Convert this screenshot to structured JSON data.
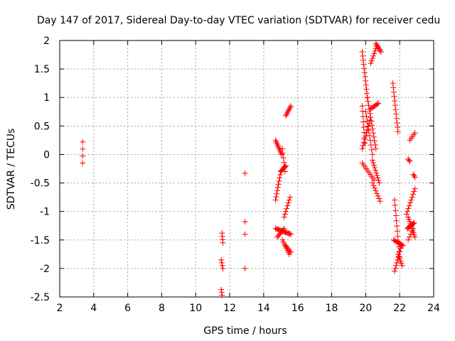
{
  "chart_data": {
    "type": "scatter",
    "title": "Day 147 of 2017, Sidereal Day-to-day VTEC variation (SDTVAR) for receiver cedu",
    "xlabel": "GPS time / hours",
    "ylabel": "SDTVAR / TECUs",
    "xlim": [
      2,
      24
    ],
    "ylim": [
      -2.5,
      2
    ],
    "x_ticks": [
      2,
      4,
      6,
      8,
      10,
      12,
      14,
      16,
      18,
      20,
      22,
      24
    ],
    "y_ticks": [
      -2.5,
      -2,
      -1.5,
      -1,
      -0.5,
      0,
      0.5,
      1,
      1.5,
      2
    ],
    "x_tick_labels": [
      "2",
      "4",
      "6",
      "8",
      "10",
      "12",
      "14",
      "16",
      "18",
      "20",
      "22",
      "24"
    ],
    "y_tick_labels": [
      "-2.5",
      "-2",
      "-1.5",
      "-1",
      "-0.5",
      "0",
      "0.5",
      "1",
      "1.5",
      "2"
    ],
    "grid": true,
    "marker": "+",
    "marker_color": "#ff0000",
    "series": [
      {
        "name": "SDTVAR",
        "tracks": [
          {
            "x0": 3.35,
            "y0": 0.22,
            "x1": 3.35,
            "y1": -0.15,
            "n": 4
          },
          {
            "x0": 11.55,
            "y0": -1.38,
            "x1": 11.6,
            "y1": -1.55,
            "n": 4
          },
          {
            "x0": 11.5,
            "y0": -1.85,
            "x1": 11.6,
            "y1": -2.0,
            "n": 4
          },
          {
            "x0": 11.5,
            "y0": -2.37,
            "x1": 11.55,
            "y1": -2.47,
            "n": 3
          },
          {
            "x0": 12.9,
            "y0": -0.33,
            "x1": 12.9,
            "y1": -0.33,
            "n": 1
          },
          {
            "x0": 12.9,
            "y0": -1.18,
            "x1": 12.9,
            "y1": -1.4,
            "n": 2
          },
          {
            "x0": 12.9,
            "y0": -2.0,
            "x1": 12.9,
            "y1": -2.0,
            "n": 1
          },
          {
            "x0": 14.7,
            "y0": 0.25,
            "x1": 15.05,
            "y1": 0.0,
            "n": 10
          },
          {
            "x0": 14.7,
            "y0": -0.8,
            "x1": 15.0,
            "y1": -0.3,
            "n": 10
          },
          {
            "x0": 15.0,
            "y0": -0.3,
            "x1": 15.3,
            "y1": -0.2,
            "n": 8
          },
          {
            "x0": 15.1,
            "y0": 0.1,
            "x1": 15.25,
            "y1": -0.3,
            "n": 6
          },
          {
            "x0": 14.7,
            "y0": -1.3,
            "x1": 15.6,
            "y1": -1.4,
            "n": 18
          },
          {
            "x0": 14.8,
            "y0": -1.45,
            "x1": 15.2,
            "y1": -1.3,
            "n": 8
          },
          {
            "x0": 15.1,
            "y0": -1.5,
            "x1": 15.5,
            "y1": -1.75,
            "n": 8
          },
          {
            "x0": 15.3,
            "y0": -1.6,
            "x1": 15.6,
            "y1": -1.72,
            "n": 6
          },
          {
            "x0": 15.2,
            "y0": -1.1,
            "x1": 15.55,
            "y1": -0.75,
            "n": 8
          },
          {
            "x0": 15.3,
            "y0": 0.68,
            "x1": 15.6,
            "y1": 0.85,
            "n": 8
          },
          {
            "x0": 19.8,
            "y0": 1.8,
            "x1": 20.1,
            "y1": 1.0,
            "n": 12
          },
          {
            "x0": 20.1,
            "y0": 1.0,
            "x1": 20.6,
            "y1": 0.1,
            "n": 14
          },
          {
            "x0": 20.3,
            "y0": 0.8,
            "x1": 20.75,
            "y1": 0.9,
            "n": 8
          },
          {
            "x0": 20.0,
            "y0": 0.75,
            "x1": 20.4,
            "y1": 0.0,
            "n": 10
          },
          {
            "x0": 19.8,
            "y0": 0.85,
            "x1": 19.95,
            "y1": 0.2,
            "n": 8
          },
          {
            "x0": 19.8,
            "y0": 0.1,
            "x1": 20.25,
            "y1": 0.6,
            "n": 10
          },
          {
            "x0": 20.4,
            "y0": -0.1,
            "x1": 20.8,
            "y1": -0.5,
            "n": 10
          },
          {
            "x0": 19.8,
            "y0": -0.15,
            "x1": 20.5,
            "y1": -0.45,
            "n": 10
          },
          {
            "x0": 20.4,
            "y0": -0.5,
            "x1": 20.85,
            "y1": -0.82,
            "n": 8
          },
          {
            "x0": 20.3,
            "y0": 1.6,
            "x1": 20.65,
            "y1": 1.9,
            "n": 8
          },
          {
            "x0": 20.6,
            "y0": 1.95,
            "x1": 20.9,
            "y1": 1.8,
            "n": 8
          },
          {
            "x0": 21.6,
            "y0": 1.25,
            "x1": 21.9,
            "y1": 0.4,
            "n": 12
          },
          {
            "x0": 21.7,
            "y0": -0.8,
            "x1": 22.0,
            "y1": -1.8,
            "n": 12
          },
          {
            "x0": 21.65,
            "y0": -1.5,
            "x1": 22.2,
            "y1": -1.6,
            "n": 10
          },
          {
            "x0": 21.7,
            "y0": -2.05,
            "x1": 22.1,
            "y1": -1.6,
            "n": 10
          },
          {
            "x0": 21.9,
            "y0": -1.75,
            "x1": 22.15,
            "y1": -1.95,
            "n": 6
          },
          {
            "x0": 22.5,
            "y0": -0.08,
            "x1": 22.6,
            "y1": -0.12,
            "n": 3
          },
          {
            "x0": 22.4,
            "y0": -1.05,
            "x1": 22.9,
            "y1": -0.6,
            "n": 10
          },
          {
            "x0": 22.5,
            "y0": -1.1,
            "x1": 22.9,
            "y1": -1.45,
            "n": 10
          },
          {
            "x0": 22.45,
            "y0": -1.3,
            "x1": 22.85,
            "y1": -1.2,
            "n": 10
          },
          {
            "x0": 22.6,
            "y0": 0.25,
            "x1": 22.9,
            "y1": 0.38,
            "n": 5
          },
          {
            "x0": 22.8,
            "y0": -0.35,
            "x1": 22.9,
            "y1": -0.4,
            "n": 3
          },
          {
            "x0": 22.5,
            "y0": -1.5,
            "x1": 22.8,
            "y1": -1.3,
            "n": 5
          }
        ]
      }
    ]
  }
}
